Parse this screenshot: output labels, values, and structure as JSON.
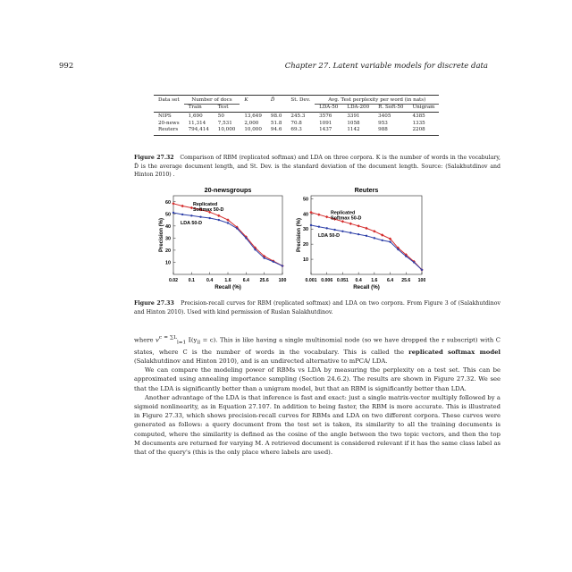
{
  "page": {
    "number": "992",
    "running_head": "Chapter 27.  Latent variable models for discrete data"
  },
  "table": {
    "col_dataset": "Data set",
    "col_num_docs": "Number of docs",
    "col_train": "Train",
    "col_test": "Test",
    "col_k": "K",
    "col_d": "D̄",
    "col_std": "St. Dev.",
    "col_perplexity": "Avg. Test perplexity per word (in nats)",
    "col_lda50": "LDA-50",
    "col_lda200": "LDA-200",
    "col_rsoft50": "R. Soft-50",
    "col_unigram": "Unigram",
    "rows": [
      {
        "dataset": "NIPS",
        "train": "1,690",
        "test": "50",
        "k": "13,649",
        "d": "98.0",
        "std": "245.3",
        "lda50": "3576",
        "lda200": "3391",
        "rsoft": "3405",
        "unigram": "4385"
      },
      {
        "dataset": "20-news",
        "train": "11,314",
        "test": "7,531",
        "k": "2,000",
        "d": "51.8",
        "std": "70.8",
        "lda50": "1091",
        "lda200": "1058",
        "rsoft": "953",
        "unigram": "1335"
      },
      {
        "dataset": "Reuters",
        "train": "794,414",
        "test": "10,000",
        "k": "10,000",
        "d": "94.6",
        "std": "69.3",
        "lda50": "1437",
        "lda200": "1142",
        "rsoft": "988",
        "unigram": "2208"
      }
    ]
  },
  "captions": {
    "fig32_label": "Figure 27.32",
    "fig32_text": "Comparison of RBM (replicated softmax) and LDA on three corpora. K is the number of words in the vocabulary, D̄ is the average document length, and St. Dev. is the standard deviation of the document length. Source: (Salakhutdinov and Hinton 2010) .",
    "fig33_label": "Figure 27.33",
    "fig33_text": "Precision-recall curves for RBM (replicated softmax) and LDA on two corpora. From Figure 3 of (Salakhutdinov and Hinton 2010). Used with kind permission of Ruslan Salakhutdinov."
  },
  "chart_data": [
    {
      "type": "line",
      "title": "20-newsgroups",
      "xlabel": "Recall (%)",
      "ylabel": "Precision (%)",
      "categories": [
        "0.02",
        "0.1",
        "0.4",
        "1.6",
        "6.4",
        "25.6",
        "100"
      ],
      "ylim": [
        0,
        65
      ],
      "yticks": [
        10,
        20,
        30,
        40,
        50,
        60
      ],
      "x": [
        0,
        0.5,
        1,
        1.5,
        2,
        2.5,
        3,
        3.5,
        4,
        4.5,
        5,
        5.5,
        6
      ],
      "series": [
        {
          "name": "Replicated Softmax 50-D",
          "color": "#d42a2a",
          "marker": "diamond",
          "values": [
            58.5,
            56.5,
            55,
            53.5,
            51.5,
            48.5,
            45,
            39,
            31,
            22,
            15,
            11,
            7
          ]
        },
        {
          "name": "LDA 50-D",
          "color": "#2d3fa8",
          "marker": "dot",
          "values": [
            51,
            49.5,
            48.5,
            47.5,
            46.5,
            45,
            42.5,
            38,
            30,
            20.5,
            13.5,
            10.5,
            7
          ]
        }
      ],
      "grid": false
    },
    {
      "type": "line",
      "title": "Reuters",
      "xlabel": "Recall (%)",
      "ylabel": "Precision (%)",
      "categories": [
        "0.001",
        "0.006",
        "0.051",
        "0.4",
        "1.6",
        "6.4",
        "25.6",
        "100"
      ],
      "ylim": [
        0,
        52
      ],
      "yticks": [
        10,
        20,
        30,
        40,
        50
      ],
      "x": [
        0,
        0.5,
        1,
        1.5,
        2,
        2.5,
        3,
        3.5,
        4,
        4.5,
        5,
        5.5,
        6,
        6.5,
        7
      ],
      "series": [
        {
          "name": "Replicated Softmax 50-D",
          "color": "#d42a2a",
          "marker": "diamond",
          "values": [
            41,
            39.5,
            38,
            36.5,
            35,
            33.5,
            32,
            30.5,
            28.5,
            26,
            23.5,
            17.5,
            13,
            8.5,
            3
          ]
        },
        {
          "name": "LDA 50-D",
          "color": "#2d3fa8",
          "marker": "dot",
          "values": [
            32.5,
            31.5,
            30.5,
            29.5,
            28.5,
            27.5,
            26.5,
            25.5,
            24,
            22.5,
            21.5,
            16.5,
            12,
            8,
            3
          ]
        }
      ],
      "grid": false
    }
  ],
  "body": {
    "p1_a": "where ",
    "p1_math": "v",
    "p1_b": "c = ∑",
    "p1_sum": "L",
    "p1_sum_sub": "l=1",
    "p1_c": " 𝕀(y",
    "p1_d": "il",
    "p1_e": " = c). This is like having a single multinomial node (so we have dropped the r subscript) with C states, where C is the number of words in the vocabulary. This is called the ",
    "p1_term": "replicated softmax model",
    "p1_f": " (Salakhutdinov and Hinton 2010), and is an undirected alternative to mPCA/ LDA.",
    "p2": "We can compare the modeling power of RBMs vs LDA by measuring the perplexity on a test set. This can be approximated using annealing importance sampling (Section 24.6.2). The results are shown in Figure 27.32. We see that the LDA is significantly better than a unigram model, but that an RBM is significantly better than LDA.",
    "p3": "Another advantage of the LDA is that inference is fast and exact: just a single matrix-vector multiply followed by a sigmoid nonlinearity, as in Equation 27.107. In addition to being faster, the RBM is more accurate. This is illustrated in Figure 27.33, which shows precision-recall curves for RBMs and LDA on two different corpora. These curves were generated as follows: a query document from the test set is taken, its similarity to all the training documents is computed, where the similarity is defined as the cosine of the angle between the two topic vectors, and then the top M documents are returned for varying M. A retrieved document is considered relevant if it has the same class label as that of the query's (this is the only place where labels are used)."
  }
}
